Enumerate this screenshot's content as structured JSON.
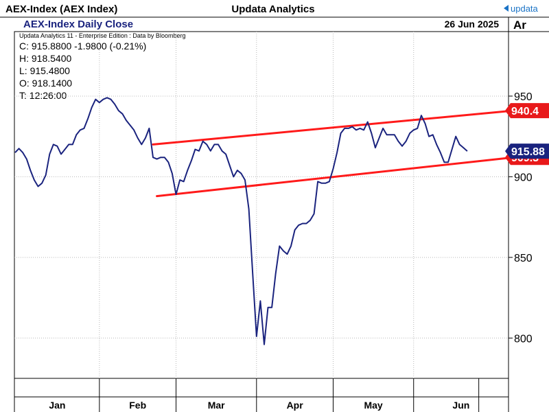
{
  "header": {
    "left_title": "AEX-Index (AEX Index)",
    "center_title": "Updata Analytics",
    "brand": "updata"
  },
  "chart_header": {
    "title": "AEX-Index Daily Close",
    "date": "26 Jun 2025",
    "axis_scale": "Ar"
  },
  "info": {
    "credit": "Updata Analytics 11 - Enterprise Edition : Data by Bloomberg",
    "close": "C: 915.8800  -1.9800 (-0.21%)",
    "high": "H: 918.5400",
    "low": "L: 915.4800",
    "open": "O: 918.1400",
    "time": "T: 12:26:00"
  },
  "colors": {
    "line": "#1a237e",
    "channel": "#ff1a1a",
    "label_blue": "#1a237e",
    "label_red": "#e8191a",
    "grid": "#b8b8b8",
    "brand": "#1a73c6"
  },
  "chart_data": {
    "type": "line",
    "title": "AEX-Index Daily Close",
    "ylim": [
      775,
      990
    ],
    "yticks": [
      800,
      850,
      900,
      950
    ],
    "months": [
      "Jan",
      "Feb",
      "Mar",
      "Apr",
      "May",
      "Jun"
    ],
    "x_range": [
      0,
      125
    ],
    "month_start_index": [
      0,
      22,
      42,
      63,
      83,
      104
    ],
    "grid": true,
    "series": [
      {
        "values": [
          915.0,
          917.5,
          915.0,
          911.0,
          904.0,
          898.0,
          894.0,
          896.0,
          901.0,
          914.0,
          920.0,
          919.0,
          914.0,
          917.0,
          920.0,
          920.0,
          926.0,
          929.0,
          930.0,
          936.0,
          943.0,
          948.0,
          946.0,
          948.0,
          949.0,
          948.0,
          945.0,
          941.0,
          939.0,
          935.0,
          932.0,
          929.0,
          924.0,
          920.0,
          924.0,
          930.0,
          912.0,
          911.0,
          912.0,
          912.0,
          909.0,
          902.0,
          889.0,
          898.0,
          897.0,
          904.0,
          910.0,
          917.0,
          916.0,
          922.0,
          920.0,
          916.0,
          920.0,
          920.0,
          916.0,
          914.0,
          907.0,
          900.0,
          904.0,
          902.0,
          898.0,
          880.0,
          840.0,
          801.0,
          823.0,
          796.0,
          819.0,
          819.0,
          840.0,
          857.0,
          854.0,
          852.0,
          857.0,
          867.0,
          870.0,
          871.0,
          871.0,
          873.0,
          877.0,
          897.0,
          896.0,
          896.0,
          897.0,
          905.0,
          915.0,
          927.0,
          930.0,
          930.0,
          931.0,
          929.0,
          930.0,
          929.0,
          934.0,
          927.0,
          918.0,
          924.0,
          930.0,
          926.0,
          926.0,
          926.0,
          922.0,
          919.0,
          922.0,
          927.0,
          929.0,
          930.0,
          938.0,
          933.0,
          925.0,
          926.0,
          920.0,
          915.0,
          909.0,
          909.0,
          917.0,
          925.0,
          920.0,
          918.0,
          915.88
        ],
        "last_label": "915.88"
      }
    ],
    "channel": {
      "upper": {
        "start_index": 36,
        "start_value": 920.0,
        "end_index": 130,
        "end_value": 941.0,
        "label": "940.4"
      },
      "lower": {
        "start_index": 37,
        "start_value": 888.0,
        "end_index": 130,
        "end_value": 912.0,
        "label": "909.3"
      }
    }
  }
}
